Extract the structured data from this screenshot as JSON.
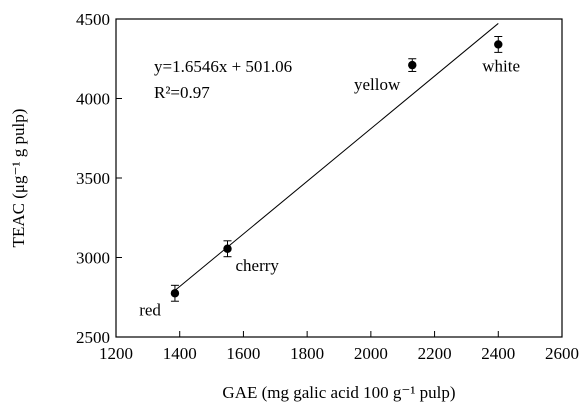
{
  "chart_data": {
    "type": "scatter",
    "xlabel": "GAE (mg galic acid 100 g⁻¹ pulp)",
    "ylabel": "TEAC (μg⁻¹ g pulp)",
    "xlim": [
      1200,
      2600
    ],
    "ylim": [
      2500,
      4500
    ],
    "xticks": [
      "1200",
      "1400",
      "1600",
      "1800",
      "2000",
      "2200",
      "2400",
      "2600"
    ],
    "yticks": [
      "2500",
      "3000",
      "3500",
      "4000",
      "4500"
    ],
    "points": [
      {
        "label": "red",
        "x": 1385,
        "y": 2775,
        "err": 50
      },
      {
        "label": "cherry",
        "x": 1550,
        "y": 3055,
        "err": 50
      },
      {
        "label": "yellow",
        "x": 2130,
        "y": 4210,
        "err": 40
      },
      {
        "label": "white",
        "x": 2400,
        "y": 4340,
        "err": 50
      }
    ],
    "fit": {
      "slope": 1.6546,
      "intercept": 501.06,
      "x_range": [
        1380,
        2400
      ]
    },
    "annotations": {
      "equation": "y=1.6546x + 501.06",
      "r_squared": "R²=0.97"
    },
    "grid": false
  }
}
